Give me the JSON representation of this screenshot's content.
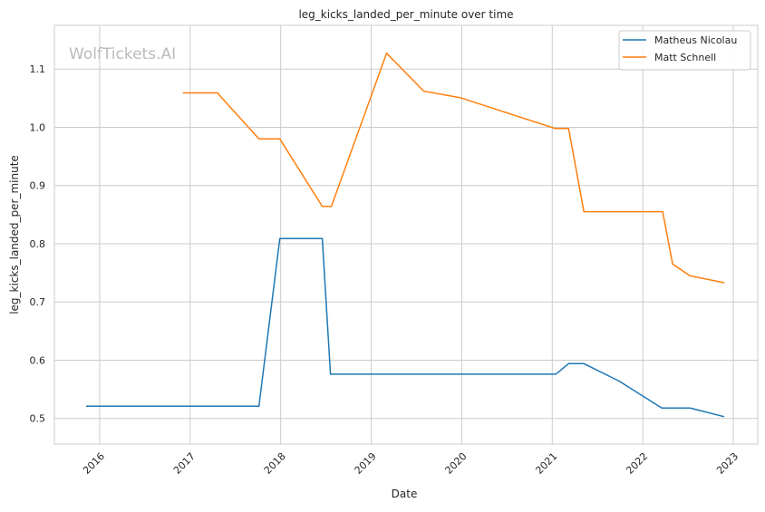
{
  "chart_data": {
    "type": "line",
    "title": "leg_kicks_landed_per_minute over time",
    "xlabel": "Date",
    "ylabel": "leg_kicks_landed_per_minute",
    "xlim": [
      2015.5,
      2023.27
    ],
    "ylim": [
      0.456,
      1.175
    ],
    "grid": true,
    "legend_position": "top-right",
    "watermark": "WolfTickets.AI",
    "x_ticks": [
      2016,
      2017,
      2018,
      2019,
      2020,
      2021,
      2022,
      2023
    ],
    "x_tick_labels": [
      "2016",
      "2017",
      "2018",
      "2019",
      "2020",
      "2021",
      "2022",
      "2023"
    ],
    "y_ticks": [
      0.5,
      0.6,
      0.7,
      0.8,
      0.9,
      1.0,
      1.1
    ],
    "y_tick_labels": [
      "0.5",
      "0.6",
      "0.7",
      "0.8",
      "0.9",
      "1.0",
      "1.1"
    ],
    "series": [
      {
        "name": "Matheus Nicolau",
        "color": "#1f77b4",
        "x": [
          2015.85,
          2017.76,
          2017.99,
          2018.46,
          2018.55,
          2021.04,
          2021.18,
          2021.35,
          2021.74,
          2022.21,
          2022.52,
          2022.9
        ],
        "values": [
          0.521,
          0.521,
          0.809,
          0.809,
          0.576,
          0.576,
          0.594,
          0.594,
          0.564,
          0.518,
          0.518,
          0.503
        ]
      },
      {
        "name": "Matt Schnell",
        "color": "#ff7f0e",
        "x": [
          2016.92,
          2017.3,
          2017.76,
          2017.99,
          2018.46,
          2018.56,
          2019.17,
          2019.58,
          2019.98,
          2021.03,
          2021.18,
          2021.35,
          2022.22,
          2022.33,
          2022.52,
          2022.9
        ],
        "values": [
          1.059,
          1.059,
          0.98,
          0.98,
          0.864,
          0.864,
          1.127,
          1.062,
          1.051,
          0.998,
          0.998,
          0.855,
          0.855,
          0.765,
          0.745,
          0.733
        ]
      }
    ]
  }
}
